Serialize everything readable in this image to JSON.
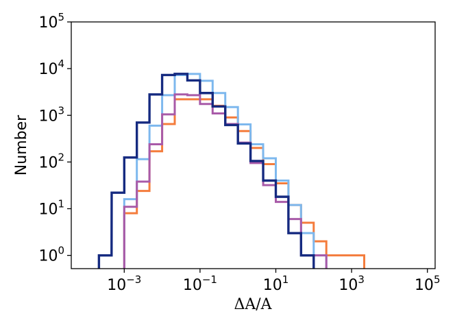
{
  "chart_data": {
    "type": "histogram",
    "xlabel": "ΔA/A",
    "ylabel": "Number",
    "xscale": "log",
    "yscale": "log",
    "xlim": [
      4e-05,
      160000
    ],
    "ylim": [
      0.52,
      100000
    ],
    "grid": false,
    "legend": "none",
    "x_ticks": [
      {
        "base": "10",
        "exp": "−3",
        "value": 0.001
      },
      {
        "base": "10",
        "exp": "−1",
        "value": 0.1
      },
      {
        "base": "10",
        "exp": "1",
        "value": 10
      },
      {
        "base": "10",
        "exp": "3",
        "value": 1000
      },
      {
        "base": "10",
        "exp": "5",
        "value": 100000
      }
    ],
    "y_ticks": [
      {
        "base": "10",
        "exp": "0",
        "value": 1
      },
      {
        "base": "10",
        "exp": "1",
        "value": 10
      },
      {
        "base": "10",
        "exp": "2",
        "value": 100
      },
      {
        "base": "10",
        "exp": "3",
        "value": 1000
      },
      {
        "base": "10",
        "exp": "4",
        "value": 10000
      },
      {
        "base": "10",
        "exp": "5",
        "value": 100000
      }
    ],
    "bin_log10_width": 0.333,
    "series": [
      {
        "color": "#f47c3c",
        "bins": [
          {
            "x0": 0.000466,
            "count": 0
          },
          {
            "x0": 0.001,
            "count": 8
          },
          {
            "x0": 0.00215,
            "count": 24
          },
          {
            "x0": 0.00464,
            "count": 170
          },
          {
            "x0": 0.01,
            "count": 650
          },
          {
            "x0": 0.0215,
            "count": 2200
          },
          {
            "x0": 0.0464,
            "count": 2200
          },
          {
            "x0": 0.1,
            "count": 2200
          },
          {
            "x0": 0.215,
            "count": 1600
          },
          {
            "x0": 0.464,
            "count": 900
          },
          {
            "x0": 1,
            "count": 460
          },
          {
            "x0": 2.15,
            "count": 200
          },
          {
            "x0": 4.64,
            "count": 90
          },
          {
            "x0": 10,
            "count": 35
          },
          {
            "x0": 21.5,
            "count": 12
          },
          {
            "x0": 46.4,
            "count": 5
          },
          {
            "x0": 100,
            "count": 2
          },
          {
            "x0": 215,
            "count": 1
          },
          {
            "x0": 464,
            "count": 1
          },
          {
            "x0": 1000,
            "count": 1
          },
          {
            "x0": 2150,
            "count": 0
          }
        ]
      },
      {
        "color": "#7db8ee",
        "bins": [
          {
            "x0": 0.000466,
            "count": 0
          },
          {
            "x0": 0.001,
            "count": 16
          },
          {
            "x0": 0.00215,
            "count": 115
          },
          {
            "x0": 0.00464,
            "count": 600
          },
          {
            "x0": 0.01,
            "count": 2700
          },
          {
            "x0": 0.0215,
            "count": 7300
          },
          {
            "x0": 0.0464,
            "count": 7700
          },
          {
            "x0": 0.1,
            "count": 5500
          },
          {
            "x0": 0.215,
            "count": 3000
          },
          {
            "x0": 0.464,
            "count": 1500
          },
          {
            "x0": 1,
            "count": 640
          },
          {
            "x0": 2.15,
            "count": 240
          },
          {
            "x0": 4.64,
            "count": 120
          },
          {
            "x0": 10,
            "count": 40
          },
          {
            "x0": 21.5,
            "count": 12
          },
          {
            "x0": 46.4,
            "count": 3
          },
          {
            "x0": 100,
            "count": 1
          },
          {
            "x0": 215,
            "count": 0
          }
        ]
      },
      {
        "color": "#a85aa8",
        "bins": [
          {
            "x0": 0.000466,
            "count": 0
          },
          {
            "x0": 0.001,
            "count": 11
          },
          {
            "x0": 0.00215,
            "count": 38
          },
          {
            "x0": 0.00464,
            "count": 240
          },
          {
            "x0": 0.01,
            "count": 1050
          },
          {
            "x0": 0.0215,
            "count": 2800
          },
          {
            "x0": 0.0464,
            "count": 2700
          },
          {
            "x0": 0.1,
            "count": 1750
          },
          {
            "x0": 0.215,
            "count": 1100
          },
          {
            "x0": 0.464,
            "count": 650
          },
          {
            "x0": 1,
            "count": 260
          },
          {
            "x0": 2.15,
            "count": 95
          },
          {
            "x0": 4.64,
            "count": 32
          },
          {
            "x0": 10,
            "count": 14
          },
          {
            "x0": 21.5,
            "count": 6
          },
          {
            "x0": 46.4,
            "count": 1
          },
          {
            "x0": 100,
            "count": 1
          },
          {
            "x0": 215,
            "count": 0
          }
        ]
      },
      {
        "color": "#152a80",
        "bins": [
          {
            "x0": 0.000215,
            "count": 1
          },
          {
            "x0": 0.000466,
            "count": 22
          },
          {
            "x0": 0.001,
            "count": 125
          },
          {
            "x0": 0.00215,
            "count": 700
          },
          {
            "x0": 0.00464,
            "count": 2800
          },
          {
            "x0": 0.01,
            "count": 7300
          },
          {
            "x0": 0.0215,
            "count": 7700
          },
          {
            "x0": 0.0464,
            "count": 5600
          },
          {
            "x0": 0.1,
            "count": 3000
          },
          {
            "x0": 0.215,
            "count": 1550
          },
          {
            "x0": 0.464,
            "count": 620
          },
          {
            "x0": 1,
            "count": 250
          },
          {
            "x0": 2.15,
            "count": 105
          },
          {
            "x0": 4.64,
            "count": 40
          },
          {
            "x0": 10,
            "count": 18
          },
          {
            "x0": 21.5,
            "count": 3
          },
          {
            "x0": 46.4,
            "count": 1
          },
          {
            "x0": 100,
            "count": 0
          }
        ]
      }
    ]
  }
}
